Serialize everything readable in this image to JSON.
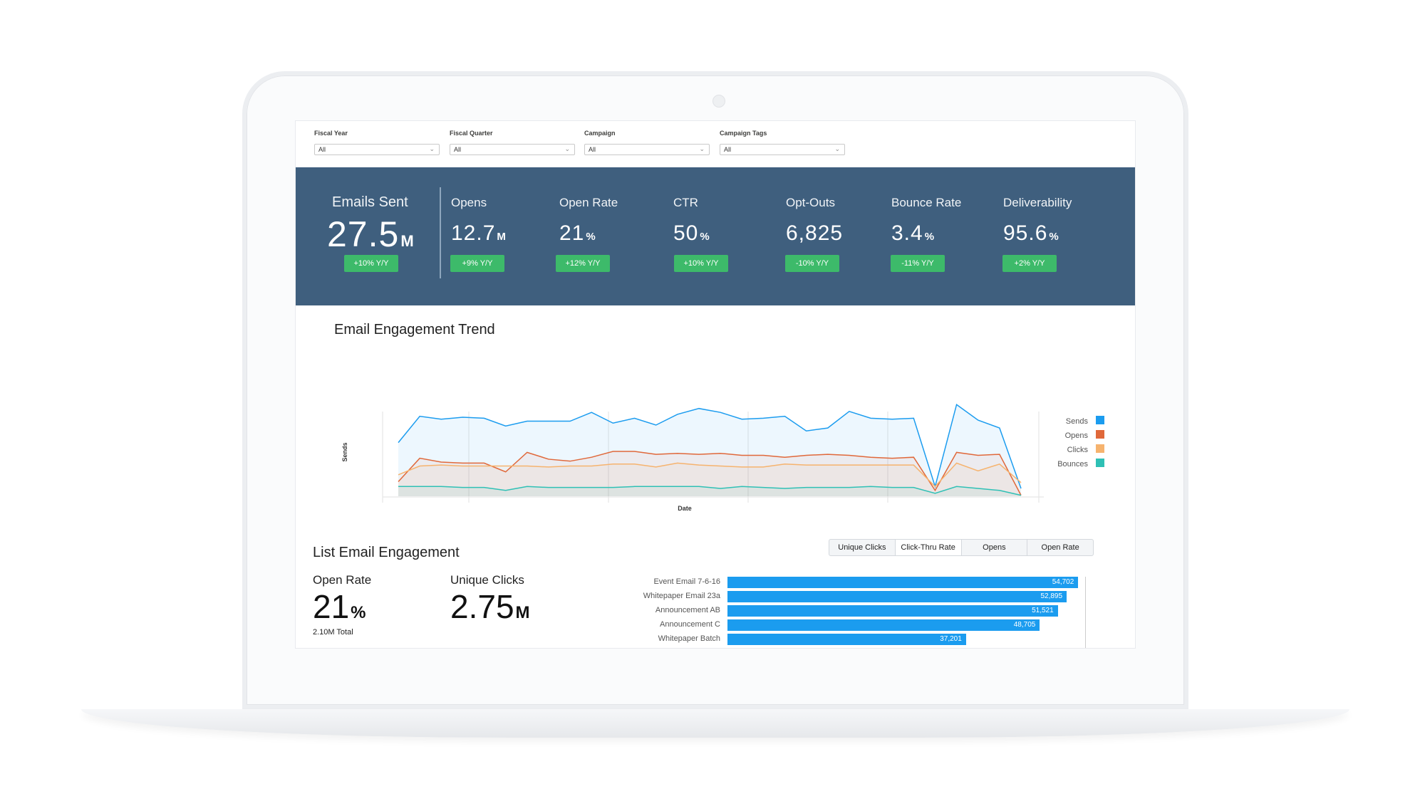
{
  "filters": [
    {
      "label": "Fiscal Year",
      "value": "All"
    },
    {
      "label": "Fiscal Quarter",
      "value": "All"
    },
    {
      "label": "Campaign",
      "value": "All"
    },
    {
      "label": "Campaign Tags",
      "value": "All"
    }
  ],
  "kpis": [
    {
      "label": "Emails Sent",
      "value": "27.5",
      "unit": "M",
      "badge": "+10% Y/Y"
    },
    {
      "label": "Opens",
      "value": "12.7",
      "unit": "M",
      "badge": "+9% Y/Y"
    },
    {
      "label": "Open Rate",
      "value": "21",
      "unit": "%",
      "badge": "+12% Y/Y"
    },
    {
      "label": "CTR",
      "value": "50",
      "unit": "%",
      "badge": "+10% Y/Y"
    },
    {
      "label": "Opt-Outs",
      "value": "6,825",
      "unit": "",
      "badge": "-10% Y/Y"
    },
    {
      "label": "Bounce Rate",
      "value": "3.4",
      "unit": "%",
      "badge": "-11% Y/Y"
    },
    {
      "label": "Deliverability",
      "value": "95.6",
      "unit": "%",
      "badge": "+2% Y/Y"
    }
  ],
  "colors": {
    "kpi_band": "#3f5f7e",
    "badge": "#3dba6a",
    "sends": "#1b9cef",
    "opens": "#e0683a",
    "clicks": "#f6b36e",
    "bounces": "#2fc0b5",
    "bar": "#1b9cef"
  },
  "trend": {
    "title": "Email Engagement Trend",
    "xlabel": "Date",
    "ylabel": "Sends"
  },
  "chart_data": [
    {
      "type": "area",
      "title": "Email Engagement Trend",
      "xlabel": "Date",
      "ylabel": "Sends",
      "x": [
        1,
        2,
        3,
        4,
        5,
        6,
        7,
        8,
        9,
        10,
        11,
        12,
        13,
        14,
        15,
        16,
        17,
        18,
        19,
        20,
        21,
        22,
        23,
        24,
        25,
        26,
        27,
        28,
        29,
        30
      ],
      "ylim": [
        0,
        100
      ],
      "grid": "vertical",
      "legend": "right",
      "series": [
        {
          "name": "Sends",
          "color": "#1b9cef",
          "values": [
            55,
            82,
            79,
            81,
            80,
            72,
            77,
            77,
            77,
            86,
            75,
            80,
            73,
            84,
            90,
            86,
            79,
            80,
            82,
            67,
            70,
            87,
            80,
            79,
            80,
            10,
            94,
            78,
            70,
            8
          ]
        },
        {
          "name": "Opens",
          "color": "#e0683a",
          "values": [
            15,
            39,
            35,
            34,
            34,
            25,
            45,
            38,
            36,
            40,
            46,
            46,
            43,
            44,
            43,
            44,
            42,
            42,
            40,
            42,
            43,
            42,
            40,
            39,
            40,
            6,
            45,
            42,
            43,
            1
          ]
        },
        {
          "name": "Clicks",
          "color": "#f6b36e",
          "values": [
            22,
            31,
            32,
            31,
            31,
            31,
            31,
            30,
            31,
            31,
            33,
            33,
            30,
            34,
            32,
            31,
            30,
            30,
            33,
            32,
            32,
            32,
            32,
            32,
            32,
            10,
            34,
            26,
            33,
            14
          ]
        },
        {
          "name": "Bounces",
          "color": "#2fc0b5",
          "values": [
            10,
            10,
            10,
            9,
            9,
            6,
            10,
            9,
            9,
            9,
            9,
            10,
            10,
            10,
            10,
            8,
            10,
            9,
            8,
            9,
            9,
            9,
            10,
            9,
            9,
            3,
            10,
            8,
            6,
            1
          ]
        }
      ]
    },
    {
      "type": "bar",
      "orientation": "horizontal",
      "title": "List Email Engagement",
      "categories": [
        "Event Email 7-6-16",
        "Whitepaper Email 23a",
        "Announcement AB",
        "Announcement C",
        "Whitepaper Batch"
      ],
      "values": [
        54702,
        52895,
        51521,
        48705,
        37201
      ],
      "value_labels": [
        "54,702",
        "52,895",
        "51,521",
        "48,705",
        "37,201"
      ],
      "xlim": [
        0,
        55000
      ]
    }
  ],
  "list_engagement": {
    "title": "List Email Engagement",
    "open_rate_label": "Open Rate",
    "open_rate_value": "21",
    "open_rate_unit": "%",
    "open_rate_sub": "2.10M Total",
    "unique_clicks_label": "Unique Clicks",
    "unique_clicks_value": "2.75",
    "unique_clicks_unit": "M",
    "tabs": [
      "Unique Clicks",
      "Click-Thru Rate",
      "Opens",
      "Open Rate"
    ],
    "active_tab": "Click-Thru Rate"
  }
}
